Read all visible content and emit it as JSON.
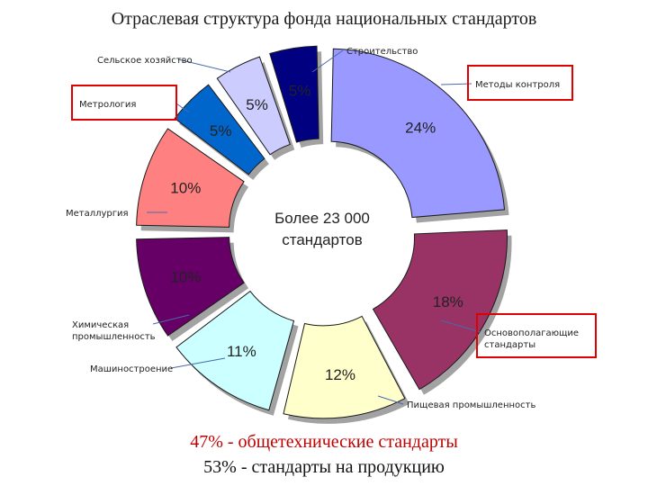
{
  "title": "Отраслевая структура фонда национальных стандартов",
  "center_text": [
    "Более 23 000",
    "стандартов"
  ],
  "footer": {
    "line1": "47% - общетехнические стандарты",
    "line2": "53% - стандарты на продукцию"
  },
  "chart_data": {
    "type": "pie",
    "style": "exploded-donut, 3D",
    "title": "Отраслевая структура фонда национальных стандартов",
    "center_label": "Более 23 000 стандартов",
    "unit": "%",
    "slices": [
      {
        "label": "Методы контроля",
        "value": 24,
        "value_label": "24%",
        "color": "#9999ff",
        "highlighted": true
      },
      {
        "label": "Основополагающие стандарты",
        "value": 18,
        "value_label": "18%",
        "color": "#993366",
        "highlighted": true
      },
      {
        "label": "Пищевая промышленность",
        "value": 12,
        "value_label": "12%",
        "color": "#ffffcc",
        "highlighted": false
      },
      {
        "label": "Машиностроение",
        "value": 11,
        "value_label": "11%",
        "color": "#ccffff",
        "highlighted": false
      },
      {
        "label": "Химическая промышленность",
        "value": 10,
        "value_label": "10%",
        "color": "#660066",
        "highlighted": false
      },
      {
        "label": "Металлургия",
        "value": 10,
        "value_label": "10%",
        "color": "#ff8080",
        "highlighted": false
      },
      {
        "label": "Метрология",
        "value": 5,
        "value_label": "5%",
        "color": "#0066cc",
        "highlighted": true
      },
      {
        "label": "Сельское хозяйство",
        "value": 5,
        "value_label": "5%",
        "color": "#ccccff",
        "highlighted": false
      },
      {
        "label": "Строительство",
        "value": 5,
        "value_label": "5%",
        "color": "#000080",
        "highlighted": false
      }
    ],
    "highlight_color": "#e00000"
  }
}
